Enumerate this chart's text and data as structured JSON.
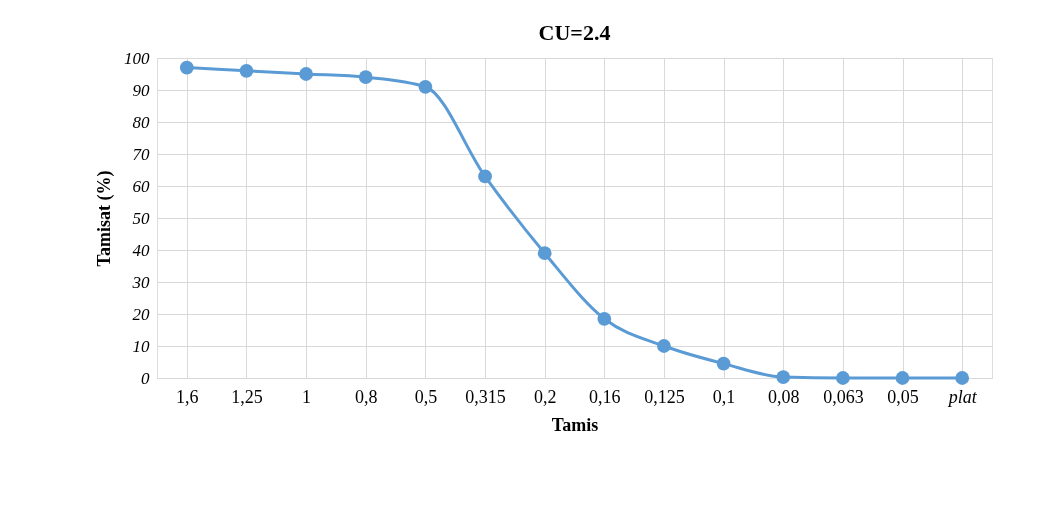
{
  "chart_data": {
    "type": "line",
    "title": "CU=2.4",
    "xlabel": "Tamis",
    "ylabel": "Tamisat (%)",
    "categories": [
      "1,6",
      "1,25",
      "1",
      "0,8",
      "0,5",
      "0,315",
      "0,2",
      "0,16",
      "0,125",
      "0,1",
      "0,08",
      "0,063",
      "0,05",
      "plat"
    ],
    "series": [
      {
        "color": "#5b9bd5",
        "values": [
          97,
          96,
          95,
          94,
          91,
          63,
          39,
          18.5,
          10,
          4.5,
          0.3,
          0,
          0,
          0
        ]
      }
    ],
    "ylim": [
      0,
      100
    ],
    "yticks": [
      0,
      10,
      20,
      30,
      40,
      50,
      60,
      70,
      80,
      90,
      100
    ],
    "grid": true,
    "marker": "circle",
    "line_style": "solid",
    "legend": false
  }
}
